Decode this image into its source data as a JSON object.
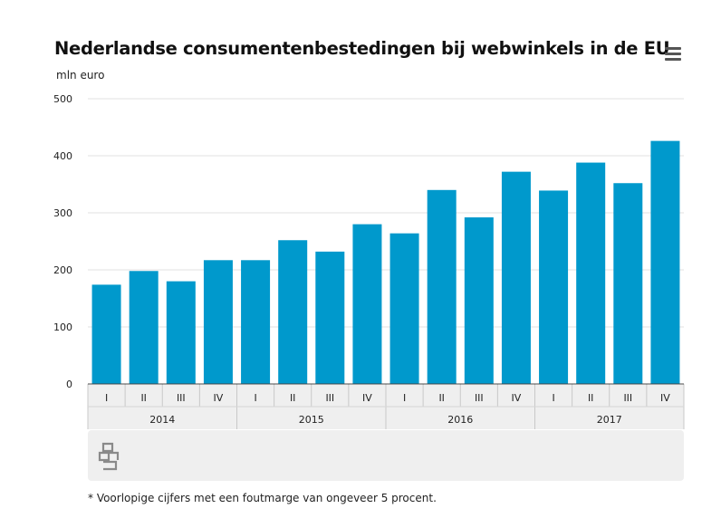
{
  "header": {
    "title": "Nederlandse consumentenbestedingen bij webwinkels in de EU",
    "unit_label": "mln euro",
    "menu_icon": "hamburger-menu-icon"
  },
  "chart_data": {
    "type": "bar",
    "ylim": [
      0,
      500
    ],
    "yticks": [
      0,
      100,
      200,
      300,
      400,
      500
    ],
    "grid": true,
    "bar_color": "#0099cc",
    "categories": [
      "I",
      "II",
      "III",
      "IV",
      "I",
      "II",
      "III",
      "IV",
      "I",
      "II",
      "III",
      "IV",
      "I",
      "II",
      "III",
      "IV"
    ],
    "groups": [
      {
        "label": "2014",
        "count": 4
      },
      {
        "label": "2015",
        "count": 4
      },
      {
        "label": "2016",
        "count": 4
      },
      {
        "label": "2017",
        "count": 4
      }
    ],
    "values": [
      174,
      198,
      180,
      217,
      217,
      252,
      232,
      280,
      264,
      340,
      292,
      372,
      339,
      388,
      352,
      426
    ]
  },
  "footer": {
    "logo_icon": "cbs-logo-icon",
    "footnote": "* Voorlopige cijfers met een foutmarge van ongeveer 5 procent."
  }
}
